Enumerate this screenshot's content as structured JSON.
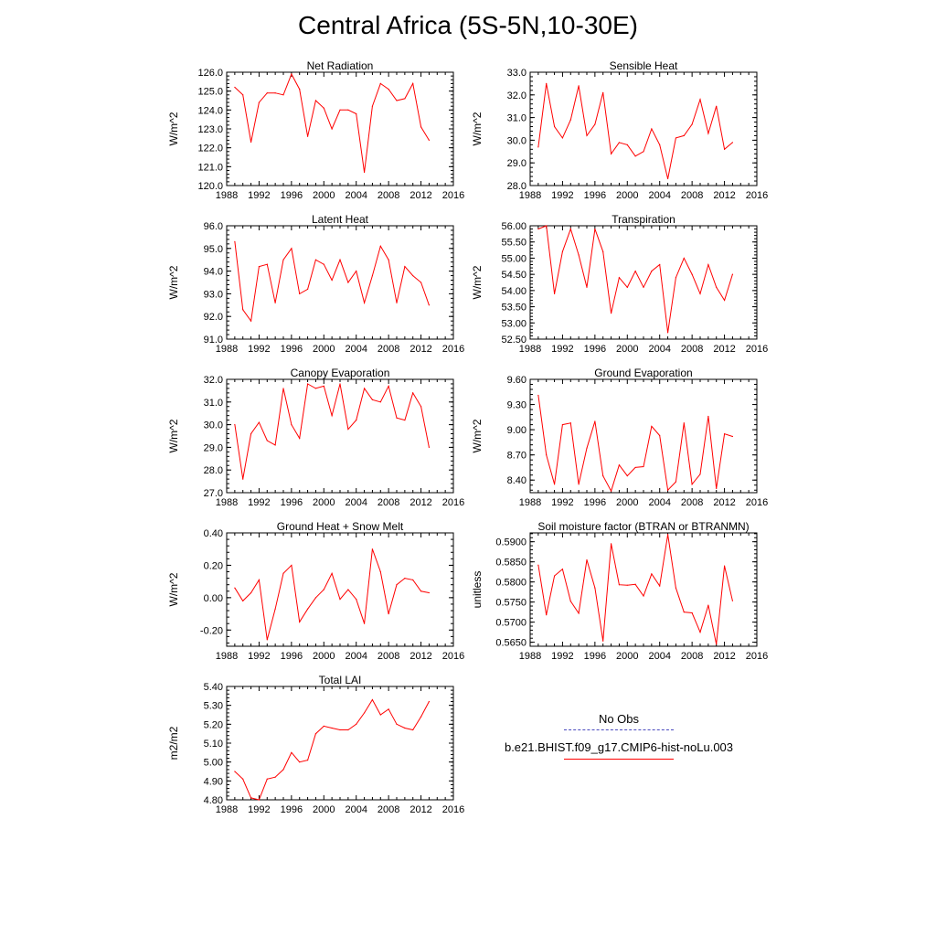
{
  "page_title": "Central Africa (5S-5N,10-30E)",
  "legend": {
    "items": [
      {
        "label": "No Obs",
        "style": "dashed",
        "color": "#4b4bbf"
      },
      {
        "label": "b.e21.BHIST.f09_g17.CMIP6-hist-noLu.003",
        "style": "solid",
        "color": "#ff0000"
      }
    ]
  },
  "line_color": "#ff0000",
  "chart_data": [
    {
      "type": "line",
      "title": "Net Radiation",
      "ylabel": "W/m^2",
      "xlim": [
        1988,
        2016
      ],
      "xticks": [
        "1988",
        "1992",
        "1996",
        "2000",
        "2004",
        "2008",
        "2012",
        "2016"
      ],
      "ylim": [
        120.0,
        126.0
      ],
      "yticks": [
        "120.0",
        "121.0",
        "122.0",
        "123.0",
        "124.0",
        "125.0",
        "126.0"
      ],
      "x": [
        1989,
        1990,
        1991,
        1992,
        1993,
        1994,
        1995,
        1996,
        1997,
        1998,
        1999,
        2000,
        2001,
        2002,
        2003,
        2004,
        2005,
        2006,
        2007,
        2008,
        2009,
        2010,
        2011,
        2012,
        2013
      ],
      "values": [
        125.2,
        124.8,
        122.3,
        124.4,
        124.9,
        124.9,
        124.8,
        125.9,
        125.1,
        122.6,
        124.5,
        124.1,
        123.0,
        124.0,
        124.0,
        123.8,
        120.7,
        124.2,
        125.4,
        125.1,
        124.5,
        124.6,
        125.4,
        123.1,
        122.4
      ]
    },
    {
      "type": "line",
      "title": "Sensible Heat",
      "ylabel": "W/m^2",
      "xlim": [
        1988,
        2016
      ],
      "xticks": [
        "1988",
        "1992",
        "1996",
        "2000",
        "2004",
        "2008",
        "2012",
        "2016"
      ],
      "ylim": [
        28.0,
        33.0
      ],
      "yticks": [
        "28.0",
        "29.0",
        "30.0",
        "31.0",
        "32.0",
        "33.0"
      ],
      "x": [
        1989,
        1990,
        1991,
        1992,
        1993,
        1994,
        1995,
        1996,
        1997,
        1998,
        1999,
        2000,
        2001,
        2002,
        2003,
        2004,
        2005,
        2006,
        2007,
        2008,
        2009,
        2010,
        2011,
        2012,
        2013
      ],
      "values": [
        29.7,
        32.5,
        30.6,
        30.1,
        30.9,
        32.4,
        30.2,
        30.7,
        32.1,
        29.4,
        29.9,
        29.8,
        29.3,
        29.5,
        30.5,
        29.8,
        28.3,
        30.1,
        30.2,
        30.7,
        31.8,
        30.3,
        31.5,
        29.6,
        29.9
      ]
    },
    {
      "type": "line",
      "title": "Latent Heat",
      "ylabel": "W/m^2",
      "xlim": [
        1988,
        2016
      ],
      "xticks": [
        "1988",
        "1992",
        "1996",
        "2000",
        "2004",
        "2008",
        "2012",
        "2016"
      ],
      "ylim": [
        91.0,
        96.0
      ],
      "yticks": [
        "91.0",
        "92.0",
        "93.0",
        "94.0",
        "95.0",
        "96.0"
      ],
      "x": [
        1989,
        1990,
        1991,
        1992,
        1993,
        1994,
        1995,
        1996,
        1997,
        1998,
        1999,
        2000,
        2001,
        2002,
        2003,
        2004,
        2005,
        2006,
        2007,
        2008,
        2009,
        2010,
        2011,
        2012,
        2013
      ],
      "values": [
        95.3,
        92.3,
        91.8,
        94.2,
        94.3,
        92.6,
        94.5,
        95.0,
        93.0,
        93.2,
        94.5,
        94.3,
        93.6,
        94.5,
        93.5,
        94.0,
        92.6,
        93.8,
        95.1,
        94.5,
        92.6,
        94.2,
        93.8,
        93.5,
        92.5
      ]
    },
    {
      "type": "line",
      "title": "Transpiration",
      "ylabel": "W/m^2",
      "xlim": [
        1988,
        2016
      ],
      "xticks": [
        "1988",
        "1992",
        "1996",
        "2000",
        "2004",
        "2008",
        "2012",
        "2016"
      ],
      "ylim": [
        52.5,
        56.0
      ],
      "yticks": [
        "52.50",
        "53.00",
        "53.50",
        "54.00",
        "54.50",
        "55.00",
        "55.50",
        "56.00"
      ],
      "x": [
        1989,
        1990,
        1991,
        1992,
        1993,
        1994,
        1995,
        1996,
        1997,
        1998,
        1999,
        2000,
        2001,
        2002,
        2003,
        2004,
        2005,
        2006,
        2007,
        2008,
        2009,
        2010,
        2011,
        2012,
        2013
      ],
      "values": [
        55.9,
        56.0,
        53.9,
        55.2,
        55.9,
        55.1,
        54.1,
        55.9,
        55.2,
        53.3,
        54.4,
        54.1,
        54.6,
        54.1,
        54.6,
        54.8,
        52.7,
        54.4,
        55.0,
        54.5,
        53.9,
        54.8,
        54.1,
        53.7,
        54.5
      ]
    },
    {
      "type": "line",
      "title": "Canopy Evaporation",
      "ylabel": "W/m^2",
      "xlim": [
        1988,
        2016
      ],
      "xticks": [
        "1988",
        "1992",
        "1996",
        "2000",
        "2004",
        "2008",
        "2012",
        "2016"
      ],
      "ylim": [
        27.0,
        32.0
      ],
      "yticks": [
        "27.0",
        "28.0",
        "29.0",
        "30.0",
        "31.0",
        "32.0"
      ],
      "x": [
        1989,
        1990,
        1991,
        1992,
        1993,
        1994,
        1995,
        1996,
        1997,
        1998,
        1999,
        2000,
        2001,
        2002,
        2003,
        2004,
        2005,
        2006,
        2007,
        2008,
        2009,
        2010,
        2011,
        2012,
        2013
      ],
      "values": [
        30.0,
        27.6,
        29.6,
        30.1,
        29.3,
        29.1,
        31.6,
        30.0,
        29.4,
        31.8,
        31.6,
        31.7,
        30.4,
        31.8,
        29.8,
        30.2,
        31.6,
        31.1,
        31.0,
        31.7,
        30.3,
        30.2,
        31.4,
        30.8,
        29.0
      ]
    },
    {
      "type": "line",
      "title": "Ground Evaporation",
      "ylabel": "W/m^2",
      "xlim": [
        1988,
        2016
      ],
      "xticks": [
        "1988",
        "1992",
        "1996",
        "2000",
        "2004",
        "2008",
        "2012",
        "2016"
      ],
      "ylim": [
        8.25,
        9.6
      ],
      "yticks": [
        "8.40",
        "8.70",
        "9.00",
        "9.30",
        "9.60"
      ],
      "x": [
        1989,
        1990,
        1991,
        1992,
        1993,
        1994,
        1995,
        1996,
        1997,
        1998,
        1999,
        2000,
        2001,
        2002,
        2003,
        2004,
        2005,
        2006,
        2007,
        2008,
        2009,
        2010,
        2011,
        2012,
        2013
      ],
      "values": [
        9.41,
        8.7,
        8.35,
        9.06,
        9.08,
        8.35,
        8.78,
        9.1,
        8.45,
        8.27,
        8.58,
        8.45,
        8.55,
        8.56,
        9.04,
        8.93,
        8.28,
        8.38,
        9.08,
        8.35,
        8.47,
        9.16,
        8.3,
        8.95,
        8.92
      ]
    },
    {
      "type": "line",
      "title": "Ground Heat + Snow Melt",
      "ylabel": "W/m^2",
      "xlim": [
        1988,
        2016
      ],
      "xticks": [
        "1988",
        "1992",
        "1996",
        "2000",
        "2004",
        "2008",
        "2012",
        "2016"
      ],
      "ylim": [
        -0.3,
        0.4
      ],
      "yticks": [
        "-0.20",
        "0.00",
        "0.20",
        "0.40"
      ],
      "x": [
        1989,
        1990,
        1991,
        1992,
        1993,
        1994,
        1995,
        1996,
        1997,
        1998,
        1999,
        2000,
        2001,
        2002,
        2003,
        2004,
        2005,
        2006,
        2007,
        2008,
        2009,
        2010,
        2011,
        2012,
        2013
      ],
      "values": [
        0.06,
        -0.02,
        0.03,
        0.11,
        -0.26,
        -0.07,
        0.15,
        0.2,
        -0.15,
        -0.07,
        0.0,
        0.05,
        0.15,
        -0.01,
        0.05,
        -0.01,
        -0.16,
        0.3,
        0.16,
        -0.1,
        0.08,
        0.12,
        0.11,
        0.04,
        0.03
      ]
    },
    {
      "type": "line",
      "title": "Soil moisture factor (BTRAN or BTRANMN)",
      "ylabel": "unitless",
      "xlim": [
        1988,
        2016
      ],
      "xticks": [
        "1988",
        "1992",
        "1996",
        "2000",
        "2004",
        "2008",
        "2012",
        "2016"
      ],
      "ylim": [
        0.564,
        0.5922
      ],
      "yticks": [
        "0.5650",
        "0.5700",
        "0.5750",
        "0.5800",
        "0.5850",
        "0.5900"
      ],
      "x": [
        1989,
        1990,
        1991,
        1992,
        1993,
        1994,
        1995,
        1996,
        1997,
        1998,
        1999,
        2000,
        2001,
        2002,
        2003,
        2004,
        2005,
        2006,
        2007,
        2008,
        2009,
        2010,
        2011,
        2012,
        2013
      ],
      "values": [
        0.5842,
        0.5718,
        0.5815,
        0.5832,
        0.5752,
        0.5722,
        0.5855,
        0.5785,
        0.5653,
        0.5895,
        0.5793,
        0.5792,
        0.5794,
        0.5765,
        0.582,
        0.579,
        0.5918,
        0.5785,
        0.5725,
        0.5723,
        0.5675,
        0.5742,
        0.5645,
        0.584,
        0.5753
      ]
    },
    {
      "type": "line",
      "title": "Total LAI",
      "ylabel": "m2/m2",
      "xlim": [
        1988,
        2016
      ],
      "xticks": [
        "1988",
        "1992",
        "1996",
        "2000",
        "2004",
        "2008",
        "2012",
        "2016"
      ],
      "ylim": [
        4.8,
        5.4
      ],
      "yticks": [
        "4.80",
        "4.90",
        "5.00",
        "5.10",
        "5.20",
        "5.30",
        "5.40"
      ],
      "x": [
        1989,
        1990,
        1991,
        1992,
        1993,
        1994,
        1995,
        1996,
        1997,
        1998,
        1999,
        2000,
        2001,
        2002,
        2003,
        2004,
        2005,
        2006,
        2007,
        2008,
        2009,
        2010,
        2011,
        2012,
        2013
      ],
      "values": [
        4.95,
        4.91,
        4.81,
        4.8,
        4.91,
        4.92,
        4.96,
        5.05,
        5.0,
        5.01,
        5.15,
        5.19,
        5.18,
        5.17,
        5.17,
        5.2,
        5.26,
        5.33,
        5.25,
        5.28,
        5.2,
        5.18,
        5.17,
        5.24,
        5.32
      ]
    }
  ]
}
